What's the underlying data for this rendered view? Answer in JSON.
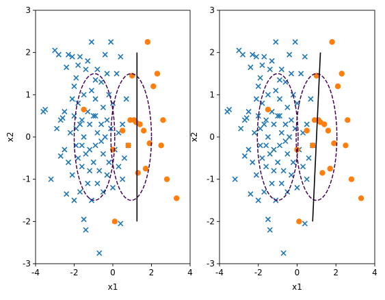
{
  "chart_data": [
    {
      "type": "scatter",
      "xlabel": "x1",
      "ylabel": "x2",
      "xlim": [
        -4,
        4
      ],
      "ylim": [
        -3,
        3
      ],
      "xticks": [
        -4,
        -2,
        0,
        2,
        4
      ],
      "yticks": [
        -3,
        -2,
        -1,
        0,
        1,
        2,
        3
      ],
      "grid": false,
      "series": [
        {
          "marker": "x",
          "color": "#1f77b4",
          "points": [
            [
              -3.6,
              0.6
            ],
            [
              -3.5,
              0.65
            ],
            [
              -3.2,
              -1.0
            ],
            [
              -3.0,
              2.05
            ],
            [
              -2.9,
              0.2
            ],
            [
              -2.8,
              1.95
            ],
            [
              -2.7,
              0.4
            ],
            [
              -2.7,
              -0.45
            ],
            [
              -2.6,
              0.45
            ],
            [
              -2.5,
              0.6
            ],
            [
              -2.5,
              -0.3
            ],
            [
              -2.4,
              1.65
            ],
            [
              -2.4,
              -1.35
            ],
            [
              -2.3,
              1.95
            ],
            [
              -2.3,
              -0.6
            ],
            [
              -2.2,
              0.1
            ],
            [
              -2.1,
              1.9
            ],
            [
              -2.1,
              -0.9
            ],
            [
              -2.0,
              0.5
            ],
            [
              -2.0,
              1.2
            ],
            [
              -2.0,
              -1.5
            ],
            [
              -1.9,
              0.2
            ],
            [
              -1.9,
              -0.2
            ],
            [
              -1.8,
              1.7
            ],
            [
              -1.8,
              0.8
            ],
            [
              -1.8,
              -0.5
            ],
            [
              -1.7,
              -1.3
            ],
            [
              -1.7,
              1.9
            ],
            [
              -1.6,
              0.4
            ],
            [
              -1.6,
              -0.7
            ],
            [
              -1.5,
              1.0
            ],
            [
              -1.5,
              -1.95
            ],
            [
              -1.5,
              0.0
            ],
            [
              -1.4,
              1.6
            ],
            [
              -1.4,
              -0.4
            ],
            [
              -1.4,
              -2.2
            ],
            [
              -1.3,
              0.6
            ],
            [
              -1.3,
              1.8
            ],
            [
              -1.3,
              -1.1
            ],
            [
              -1.2,
              0.3
            ],
            [
              -1.2,
              -0.3
            ],
            [
              -1.1,
              2.25
            ],
            [
              -1.1,
              1.1
            ],
            [
              -1.1,
              -1.5
            ],
            [
              -1.0,
              0.5
            ],
            [
              -1.0,
              -0.6
            ],
            [
              -0.9,
              0.9
            ],
            [
              -0.9,
              -0.2
            ],
            [
              -0.9,
              1.35
            ],
            [
              -0.8,
              -1.1
            ],
            [
              -0.8,
              0.1
            ],
            [
              -0.8,
              1.6
            ],
            [
              -0.7,
              -0.8
            ],
            [
              -0.7,
              -2.75
            ],
            [
              -0.6,
              0.3
            ],
            [
              -0.6,
              1.3
            ],
            [
              -0.5,
              -0.4
            ],
            [
              -0.5,
              0.7
            ],
            [
              -0.5,
              -1.3
            ],
            [
              -0.4,
              1.95
            ],
            [
              -0.4,
              0.0
            ],
            [
              -0.3,
              -0.9
            ],
            [
              -0.3,
              0.4
            ],
            [
              -0.2,
              1.0
            ],
            [
              -0.2,
              -0.6
            ],
            [
              -0.1,
              2.25
            ],
            [
              -0.1,
              0.2
            ],
            [
              0.0,
              -1.2
            ],
            [
              0.0,
              0.8
            ],
            [
              0.1,
              -0.3
            ],
            [
              0.2,
              1.5
            ],
            [
              0.3,
              -0.7
            ],
            [
              0.3,
              0.1
            ],
            [
              0.4,
              1.9
            ],
            [
              0.4,
              -2.05
            ],
            [
              0.5,
              0.3
            ],
            [
              0.5,
              -1.0
            ],
            [
              0.6,
              -0.5
            ],
            [
              0.7,
              0.9
            ],
            [
              0.8,
              -0.2
            ],
            [
              -1.6,
              -0.2
            ],
            [
              -1.2,
              -0.8
            ],
            [
              -0.6,
              -0.1
            ],
            [
              -2.1,
              0.9
            ],
            [
              -1.9,
              1.4
            ],
            [
              -0.3,
              1.5
            ],
            [
              -1.7,
              0.3
            ],
            [
              -0.9,
              0.5
            ]
          ]
        },
        {
          "marker": "o",
          "color": "#ff7f0e",
          "points": [
            [
              -1.5,
              0.65
            ],
            [
              0.0,
              -0.3
            ],
            [
              0.5,
              0.15
            ],
            [
              0.8,
              -0.2
            ],
            [
              0.9,
              0.4
            ],
            [
              1.0,
              1.45
            ],
            [
              1.2,
              0.35
            ],
            [
              1.3,
              -0.85
            ],
            [
              1.4,
              0.3
            ],
            [
              1.6,
              0.15
            ],
            [
              1.7,
              -0.75
            ],
            [
              1.8,
              2.25
            ],
            [
              1.9,
              -0.15
            ],
            [
              2.1,
              1.2
            ],
            [
              2.3,
              1.5
            ],
            [
              2.5,
              -0.2
            ],
            [
              2.6,
              0.4
            ],
            [
              2.8,
              -1.0
            ],
            [
              3.3,
              -1.45
            ],
            [
              0.1,
              -2.0
            ],
            [
              1.1,
              0.4
            ]
          ]
        }
      ],
      "ellipses": [
        {
          "cx": -0.95,
          "cy": 0.0,
          "rx": 1.05,
          "ry": 1.5,
          "color": "#440154",
          "style": "dashed"
        },
        {
          "cx": 0.95,
          "cy": 0.0,
          "rx": 1.05,
          "ry": 1.5,
          "color": "#440154",
          "style": "dashed"
        }
      ],
      "line": {
        "points": [
          [
            1.25,
            2.0
          ],
          [
            1.25,
            -2.0
          ]
        ],
        "color": "#000000"
      }
    },
    {
      "type": "scatter",
      "xlabel": "x1",
      "ylabel": "x2",
      "xlim": [
        -4,
        4
      ],
      "ylim": [
        -3,
        3
      ],
      "xticks": [
        -4,
        -2,
        0,
        2,
        4
      ],
      "yticks": [
        -3,
        -2,
        -1,
        0,
        1,
        2,
        3
      ],
      "grid": false,
      "series": [
        {
          "marker": "x",
          "color": "#1f77b4",
          "points": [
            [
              -3.6,
              0.6
            ],
            [
              -3.5,
              0.65
            ],
            [
              -3.2,
              -1.0
            ],
            [
              -3.0,
              2.05
            ],
            [
              -2.9,
              0.2
            ],
            [
              -2.8,
              1.95
            ],
            [
              -2.7,
              0.4
            ],
            [
              -2.7,
              -0.45
            ],
            [
              -2.6,
              0.45
            ],
            [
              -2.5,
              0.6
            ],
            [
              -2.5,
              -0.3
            ],
            [
              -2.4,
              1.65
            ],
            [
              -2.4,
              -1.35
            ],
            [
              -2.3,
              1.95
            ],
            [
              -2.3,
              -0.6
            ],
            [
              -2.2,
              0.1
            ],
            [
              -2.1,
              1.9
            ],
            [
              -2.1,
              -0.9
            ],
            [
              -2.0,
              0.5
            ],
            [
              -2.0,
              1.2
            ],
            [
              -2.0,
              -1.5
            ],
            [
              -1.9,
              0.2
            ],
            [
              -1.9,
              -0.2
            ],
            [
              -1.8,
              1.7
            ],
            [
              -1.8,
              0.8
            ],
            [
              -1.8,
              -0.5
            ],
            [
              -1.7,
              -1.3
            ],
            [
              -1.7,
              1.9
            ],
            [
              -1.6,
              0.4
            ],
            [
              -1.6,
              -0.7
            ],
            [
              -1.5,
              1.0
            ],
            [
              -1.5,
              -1.95
            ],
            [
              -1.5,
              0.0
            ],
            [
              -1.4,
              1.6
            ],
            [
              -1.4,
              -0.4
            ],
            [
              -1.4,
              -2.2
            ],
            [
              -1.3,
              0.6
            ],
            [
              -1.3,
              1.8
            ],
            [
              -1.3,
              -1.1
            ],
            [
              -1.2,
              0.3
            ],
            [
              -1.2,
              -0.3
            ],
            [
              -1.1,
              2.25
            ],
            [
              -1.1,
              1.1
            ],
            [
              -1.1,
              -1.5
            ],
            [
              -1.0,
              0.5
            ],
            [
              -1.0,
              -0.6
            ],
            [
              -0.9,
              0.9
            ],
            [
              -0.9,
              -0.2
            ],
            [
              -0.9,
              1.35
            ],
            [
              -0.8,
              -1.1
            ],
            [
              -0.8,
              0.1
            ],
            [
              -0.8,
              1.6
            ],
            [
              -0.7,
              -0.8
            ],
            [
              -0.7,
              -2.75
            ],
            [
              -0.6,
              0.3
            ],
            [
              -0.6,
              1.3
            ],
            [
              -0.5,
              -0.4
            ],
            [
              -0.5,
              0.7
            ],
            [
              -0.5,
              -1.3
            ],
            [
              -0.4,
              1.95
            ],
            [
              -0.4,
              0.0
            ],
            [
              -0.3,
              -0.9
            ],
            [
              -0.3,
              0.4
            ],
            [
              -0.2,
              1.0
            ],
            [
              -0.2,
              -0.6
            ],
            [
              -0.1,
              2.25
            ],
            [
              -0.1,
              0.2
            ],
            [
              0.0,
              -1.2
            ],
            [
              0.0,
              0.8
            ],
            [
              0.1,
              -0.3
            ],
            [
              0.2,
              1.5
            ],
            [
              0.3,
              -0.7
            ],
            [
              0.3,
              0.1
            ],
            [
              0.4,
              1.9
            ],
            [
              0.4,
              -2.05
            ],
            [
              0.5,
              0.3
            ],
            [
              0.5,
              -1.0
            ],
            [
              0.6,
              -0.5
            ],
            [
              0.7,
              0.9
            ],
            [
              0.8,
              -0.2
            ],
            [
              -1.6,
              -0.2
            ],
            [
              -1.2,
              -0.8
            ],
            [
              -0.6,
              -0.1
            ],
            [
              -2.1,
              0.9
            ],
            [
              -1.9,
              1.4
            ],
            [
              -0.3,
              1.5
            ],
            [
              -1.7,
              0.3
            ],
            [
              -0.9,
              0.5
            ]
          ]
        },
        {
          "marker": "o",
          "color": "#ff7f0e",
          "points": [
            [
              -1.5,
              0.65
            ],
            [
              0.0,
              -0.3
            ],
            [
              0.5,
              0.15
            ],
            [
              0.8,
              -0.2
            ],
            [
              0.9,
              0.4
            ],
            [
              1.0,
              1.45
            ],
            [
              1.2,
              0.35
            ],
            [
              1.3,
              -0.85
            ],
            [
              1.4,
              0.3
            ],
            [
              1.6,
              0.15
            ],
            [
              1.7,
              -0.75
            ],
            [
              1.8,
              2.25
            ],
            [
              1.9,
              -0.15
            ],
            [
              2.1,
              1.2
            ],
            [
              2.3,
              1.5
            ],
            [
              2.5,
              -0.2
            ],
            [
              2.6,
              0.4
            ],
            [
              2.8,
              -1.0
            ],
            [
              3.3,
              -1.45
            ],
            [
              0.1,
              -2.0
            ],
            [
              1.1,
              0.4
            ]
          ]
        }
      ],
      "ellipses": [
        {
          "cx": -1.0,
          "cy": 0.0,
          "rx": 1.05,
          "ry": 1.5,
          "color": "#440154",
          "style": "dashed"
        },
        {
          "cx": 1.0,
          "cy": 0.0,
          "rx": 1.05,
          "ry": 1.5,
          "color": "#440154",
          "style": "dashed"
        }
      ],
      "line": {
        "points": [
          [
            1.2,
            2.0
          ],
          [
            0.8,
            -2.0
          ]
        ],
        "color": "#000000"
      }
    }
  ]
}
